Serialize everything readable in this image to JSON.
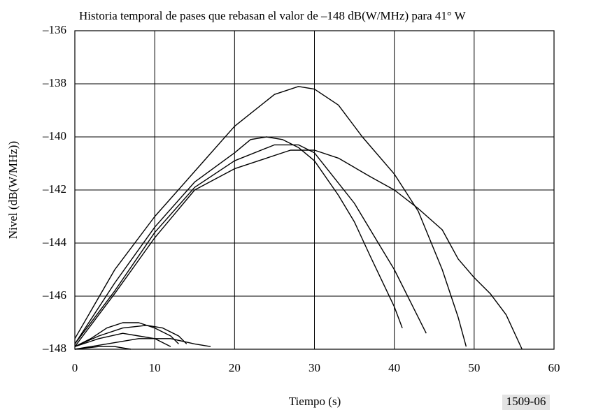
{
  "chart_data": {
    "type": "line",
    "title": "Historia temporal de pases que rebasan el valor de –148 dB(W/MHz) para 41° W",
    "x_label": "Tiempo (s)",
    "y_label": "Nivel (dB(W/MHz))",
    "note": "1509-06",
    "xlim": [
      0,
      60
    ],
    "ylim": [
      -148,
      -136
    ],
    "xticks": [
      0,
      10,
      20,
      30,
      40,
      50,
      60
    ],
    "yticks": [
      {
        "value": -148,
        "label": "–148"
      },
      {
        "value": -146,
        "label": "–146"
      },
      {
        "value": -144,
        "label": "–144"
      },
      {
        "value": -142,
        "label": "–142"
      },
      {
        "value": -140,
        "label": "–140"
      },
      {
        "value": -138,
        "label": "–138"
      },
      {
        "value": -136,
        "label": "–136"
      }
    ],
    "grid": true,
    "series": [
      {
        "color": "#000000",
        "x": [
          0,
          5,
          10,
          15,
          20,
          25,
          28,
          30,
          33,
          36,
          40,
          43,
          46,
          48,
          49
        ],
        "values": [
          -147.6,
          -145,
          -143,
          -141.3,
          -139.6,
          -138.4,
          -138.1,
          -138.2,
          -138.8,
          -140,
          -141.4,
          -142.8,
          -145,
          -146.8,
          -147.9
        ]
      },
      {
        "color": "#000000",
        "x": [
          0,
          5,
          10,
          15,
          20,
          22,
          24,
          26,
          28,
          30,
          33,
          35,
          37,
          40,
          41
        ],
        "values": [
          -147.8,
          -145.5,
          -143.4,
          -141.7,
          -140.6,
          -140.1,
          -140,
          -140.1,
          -140.4,
          -140.9,
          -142.2,
          -143.2,
          -144.5,
          -146.4,
          -147.2
        ]
      },
      {
        "color": "#000000",
        "x": [
          0,
          5,
          10,
          15,
          20,
          25,
          28,
          30,
          35,
          38,
          40,
          42,
          44
        ],
        "values": [
          -147.8,
          -145.8,
          -143.6,
          -141.9,
          -140.9,
          -140.3,
          -140.3,
          -140.6,
          -142.5,
          -144,
          -145,
          -146.2,
          -147.4
        ]
      },
      {
        "color": "#000000",
        "x": [
          0,
          5,
          10,
          15,
          20,
          23,
          27,
          30,
          33,
          37,
          40,
          43,
          46,
          48,
          50,
          52,
          54,
          56
        ],
        "values": [
          -147.9,
          -145.9,
          -143.8,
          -142,
          -141.2,
          -140.9,
          -140.5,
          -140.5,
          -140.8,
          -141.5,
          -142,
          -142.7,
          -143.5,
          -144.6,
          -145.3,
          -145.9,
          -146.7,
          -148
        ]
      },
      {
        "color": "#000000",
        "x": [
          0,
          2,
          4,
          6,
          8,
          10,
          12,
          13
        ],
        "values": [
          -147.9,
          -147.6,
          -147.2,
          -147,
          -147,
          -147.2,
          -147.5,
          -147.8
        ]
      },
      {
        "color": "#000000",
        "x": [
          0,
          3,
          6,
          9,
          11,
          13,
          14
        ],
        "values": [
          -147.9,
          -147.5,
          -147.2,
          -147.1,
          -147.2,
          -147.5,
          -147.8
        ]
      },
      {
        "color": "#000000",
        "x": [
          0,
          3,
          6,
          8,
          10,
          12
        ],
        "values": [
          -147.9,
          -147.6,
          -147.4,
          -147.5,
          -147.6,
          -147.9
        ]
      },
      {
        "color": "#000000",
        "x": [
          0,
          4,
          8,
          12,
          15,
          17
        ],
        "values": [
          -148,
          -147.8,
          -147.6,
          -147.6,
          -147.8,
          -147.9
        ]
      },
      {
        "color": "#000000",
        "x": [
          0,
          3,
          5,
          7
        ],
        "values": [
          -148,
          -147.9,
          -147.9,
          -148
        ]
      }
    ]
  }
}
